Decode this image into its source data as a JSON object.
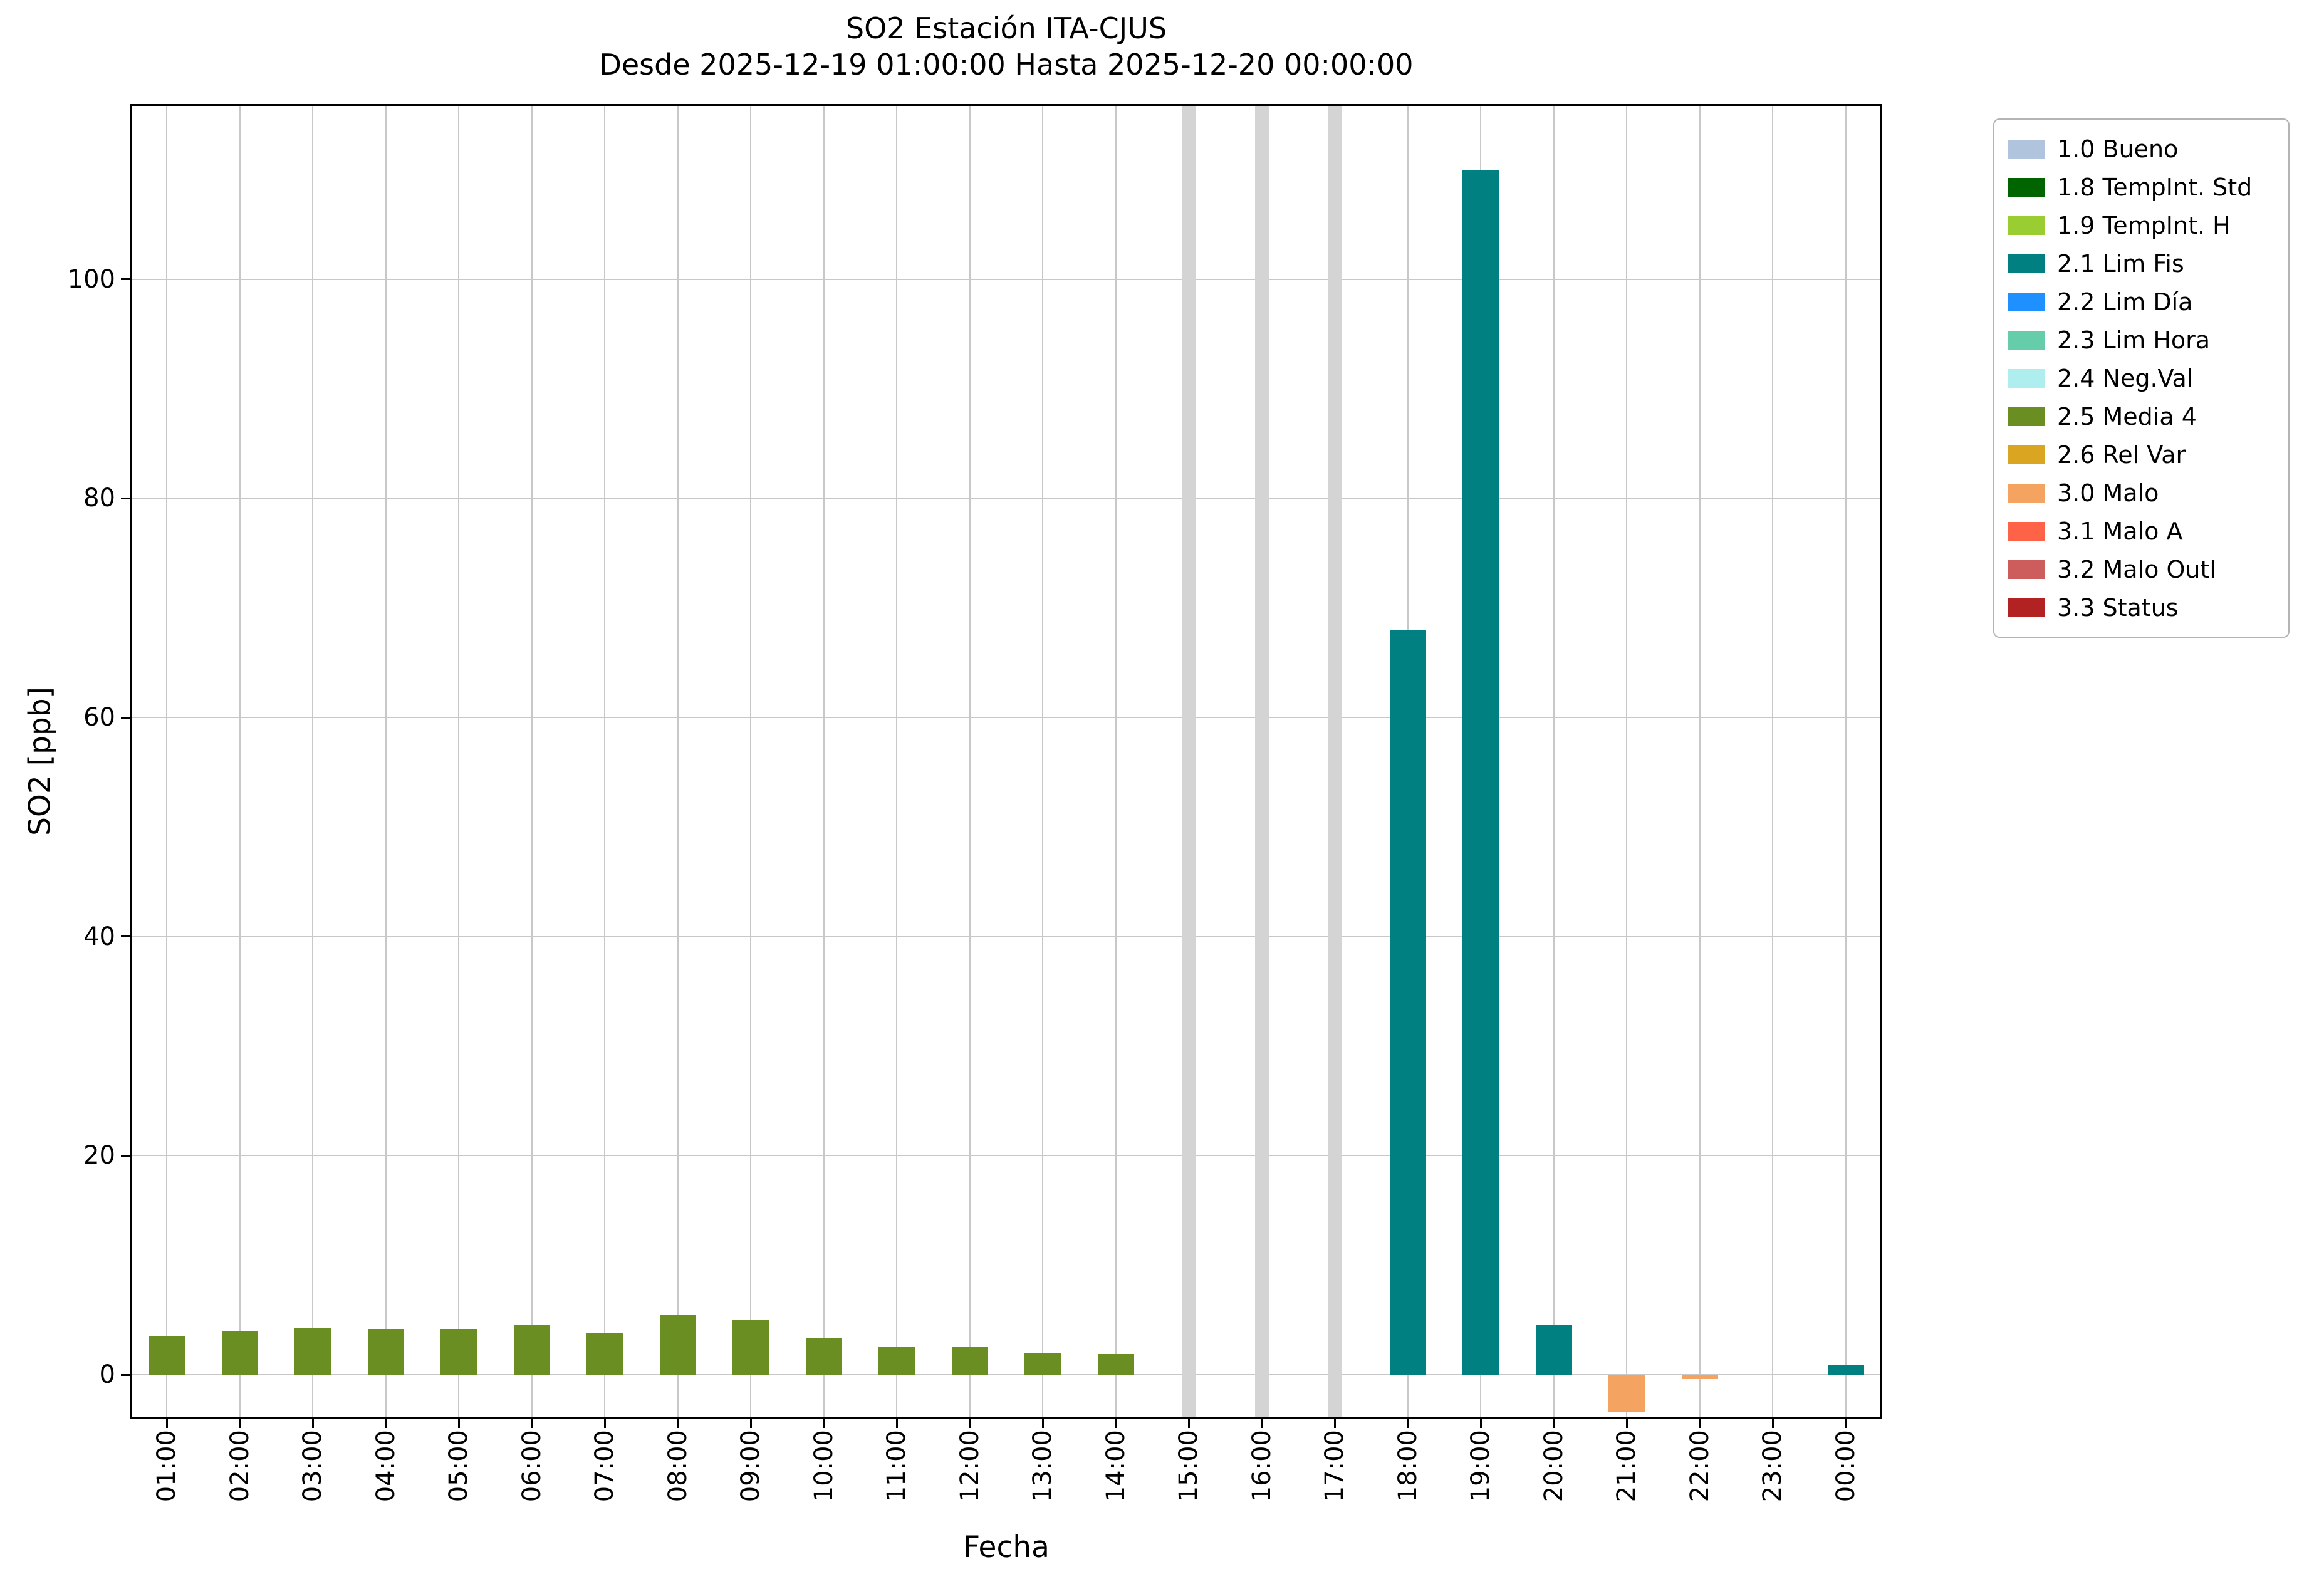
{
  "chart_data": {
    "type": "bar",
    "title": "SO2 Estación ITA-CJUS",
    "subtitle": "Desde 2025-12-19 01:00:00 Hasta 2025-12-20 00:00:00",
    "xlabel": "Fecha",
    "ylabel": "SO2 [ppb]",
    "ylim": [
      -4,
      116
    ],
    "yticks": [
      0,
      20,
      40,
      60,
      80,
      100
    ],
    "grid": true,
    "legend_position": "outside-right",
    "categories": [
      "01:00",
      "02:00",
      "03:00",
      "04:00",
      "05:00",
      "06:00",
      "07:00",
      "08:00",
      "09:00",
      "10:00",
      "11:00",
      "12:00",
      "13:00",
      "14:00",
      "15:00",
      "16:00",
      "17:00",
      "18:00",
      "19:00",
      "20:00",
      "21:00",
      "22:00",
      "23:00",
      "00:00"
    ],
    "values": [
      3.5,
      4.0,
      4.3,
      4.2,
      4.2,
      4.5,
      3.8,
      5.5,
      5.0,
      3.4,
      2.6,
      2.6,
      2.0,
      1.9,
      null,
      null,
      null,
      68,
      110,
      4.5,
      -3.4,
      -0.4,
      0,
      0.9
    ],
    "statuses": [
      "2.5 Media 4",
      "2.5 Media 4",
      "2.5 Media 4",
      "2.5 Media 4",
      "2.5 Media 4",
      "2.5 Media 4",
      "2.5 Media 4",
      "2.5 Media 4",
      "2.5 Media 4",
      "2.5 Media 4",
      "2.5 Media 4",
      "2.5 Media 4",
      "2.5 Media 4",
      "2.5 Media 4",
      "no-data",
      "no-data",
      "no-data",
      "2.1 Lim Fis",
      "2.1 Lim Fis",
      "2.1 Lim Fis",
      "3.0 Malo",
      "3.0 Malo",
      "none",
      "2.1 Lim Fis"
    ],
    "status_colors": {
      "2.5 Media 4": "#6B8E23",
      "2.1 Lim Fis": "#008080",
      "3.0 Malo": "#F4A460",
      "no-data": "#D4D4D4",
      "none": "#000000"
    },
    "no_data_hours": [
      "15:00",
      "16:00",
      "17:00"
    ]
  },
  "legend": {
    "items": [
      {
        "label": "1.0 Bueno",
        "color": "#B0C4DE"
      },
      {
        "label": "1.8 TempInt. Std",
        "color": "#006400"
      },
      {
        "label": "1.9 TempInt. H",
        "color": "#9ACD32"
      },
      {
        "label": "2.1 Lim Fis",
        "color": "#008080"
      },
      {
        "label": "2.2 Lim Día",
        "color": "#1E90FF"
      },
      {
        "label": "2.3 Lim Hora",
        "color": "#66CDAA"
      },
      {
        "label": "2.4 Neg.Val",
        "color": "#AFEEEE"
      },
      {
        "label": "2.5 Media 4",
        "color": "#6B8E23"
      },
      {
        "label": "2.6 Rel Var",
        "color": "#DAA520"
      },
      {
        "label": "3.0 Malo",
        "color": "#F4A460"
      },
      {
        "label": "3.1 Malo A",
        "color": "#FF6347"
      },
      {
        "label": "3.2 Malo Outl",
        "color": "#CD5C5C"
      },
      {
        "label": "3.3 Status",
        "color": "#B22222"
      }
    ]
  }
}
